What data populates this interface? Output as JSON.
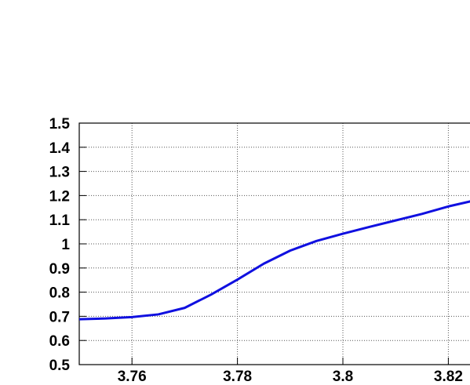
{
  "chart_data": {
    "type": "line",
    "x": [
      3.75,
      3.755,
      3.76,
      3.765,
      3.77,
      3.775,
      3.78,
      3.785,
      3.79,
      3.795,
      3.8,
      3.805,
      3.81,
      3.815,
      3.82,
      3.825
    ],
    "series": [
      {
        "color": "#1010e0",
        "values": [
          0.688,
          0.691,
          0.697,
          0.708,
          0.735,
          0.79,
          0.852,
          0.918,
          0.972,
          1.012,
          1.042,
          1.07,
          1.097,
          1.124,
          1.155,
          1.18
        ]
      }
    ],
    "xlim": [
      3.75,
      3.825
    ],
    "xticks": [
      3.76,
      3.78,
      3.8,
      3.82
    ],
    "ylim": [
      0.5,
      1.5
    ],
    "yticks": [
      0.5,
      0.6,
      0.7,
      0.8,
      0.9,
      1,
      1.1,
      1.2,
      1.3,
      1.4,
      1.5
    ],
    "grid": true
  }
}
